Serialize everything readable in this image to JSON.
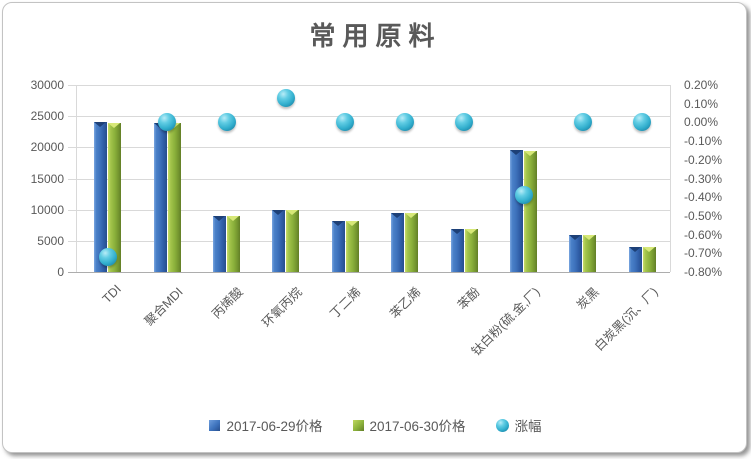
{
  "title": "常用原料",
  "chart_data": {
    "type": "bar+scatter-combo",
    "title": "常用原料",
    "categories": [
      "TDI",
      "聚合MDI",
      "丙烯酸",
      "环氧丙烷",
      "丁二烯",
      "苯乙烯",
      "苯酚",
      "钛白粉(硫.金,厂)",
      "炭黑",
      "白炭黑(沉、厂)"
    ],
    "series": [
      {
        "name": "2017-06-29价格",
        "type": "bar",
        "axis": "left",
        "values": [
          24000,
          23900,
          9000,
          10000,
          8200,
          9400,
          6900,
          19500,
          6000,
          4000
        ]
      },
      {
        "name": "2017-06-30价格",
        "type": "bar",
        "axis": "left",
        "values": [
          23830,
          23900,
          9000,
          10013,
          8200,
          9400,
          6900,
          19425,
          6000,
          4000
        ]
      },
      {
        "name": "涨幅",
        "type": "scatter",
        "axis": "right",
        "values_percent": [
          -0.72,
          0.0,
          0.0,
          0.13,
          0.0,
          0.0,
          0.0,
          -0.39,
          0.0,
          0.0
        ]
      }
    ],
    "left_axis": {
      "min": 0,
      "max": 30000,
      "step": 5000,
      "tick_labels": [
        "30000",
        "25000",
        "20000",
        "15000",
        "10000",
        "5000",
        "0"
      ]
    },
    "right_axis": {
      "min_percent": -0.8,
      "max_percent": 0.2,
      "step_percent": 0.1,
      "tick_labels": [
        "0.20%",
        "0.10%",
        "0.00%",
        "-0.10%",
        "-0.20%",
        "-0.30%",
        "-0.40%",
        "-0.50%",
        "-0.60%",
        "-0.70%",
        "-0.80%"
      ]
    },
    "grid": true,
    "legend_position": "bottom"
  },
  "legend": [
    {
      "label": "2017-06-29价格",
      "marker": "square",
      "color": "#3e73bd"
    },
    {
      "label": "2017-06-30价格",
      "marker": "square",
      "color": "#8cb23c"
    },
    {
      "label": "涨幅",
      "marker": "circle",
      "color": "#31aecd"
    }
  ],
  "colors": {
    "bar_blue": "#3e73bd",
    "bar_green": "#8cb23c",
    "sphere_teal": "#31aecd",
    "gridline": "#d9d9d9",
    "axis_text": "#595959",
    "title_text": "#595959"
  }
}
